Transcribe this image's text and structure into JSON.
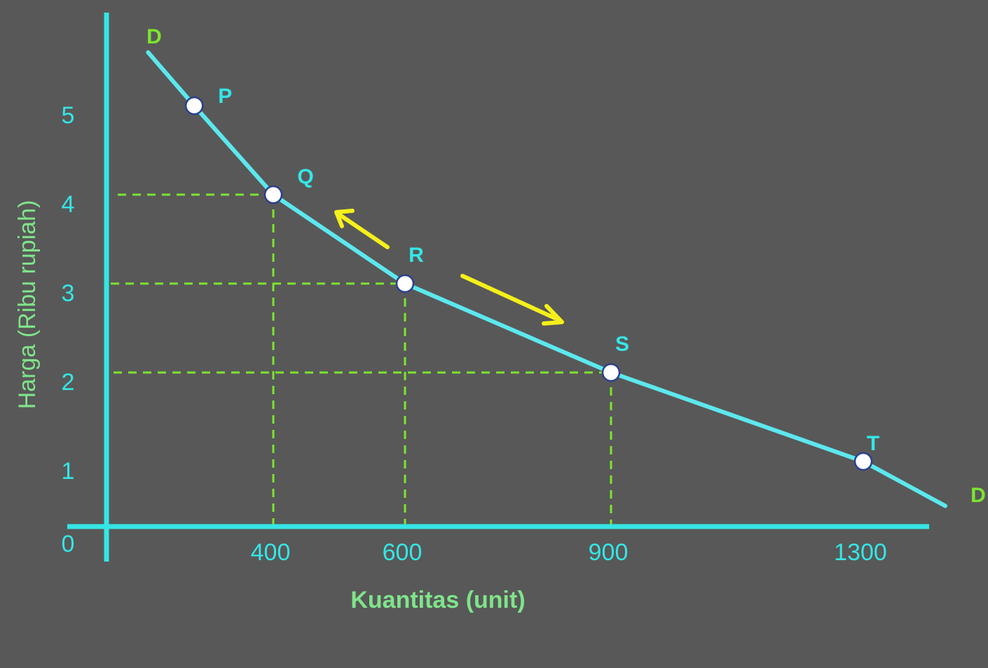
{
  "chart_data": {
    "type": "line",
    "xlabel": "Kuantitas (unit)",
    "ylabel": "Harga (Ribu rupiah)",
    "origin_label": "0",
    "x_ticks": [
      "400",
      "600",
      "900",
      "1300"
    ],
    "y_ticks": [
      "1",
      "2",
      "3",
      "4",
      "5"
    ],
    "curve_labels": [
      "D",
      "D"
    ],
    "series": [
      {
        "points": [
          {
            "label": "P",
            "x": 280,
            "y": 5
          },
          {
            "label": "Q",
            "x": 400,
            "y": 4
          },
          {
            "label": "R",
            "x": 600,
            "y": 3
          },
          {
            "label": "S",
            "x": 900,
            "y": 2
          },
          {
            "label": "T",
            "x": 1300,
            "y": 1
          }
        ]
      }
    ],
    "curve_ends": {
      "start": {
        "x": 210,
        "y": 5.6
      },
      "end": {
        "x": 1430,
        "y": 0.5
      }
    },
    "guides": [
      {
        "x": 400,
        "y": 4
      },
      {
        "x": 600,
        "y": 3
      },
      {
        "x": 900,
        "y": 2
      }
    ],
    "arrows": [
      "up-left",
      "down-right"
    ],
    "colors": {
      "background": "#585858",
      "curve": "#5ce8ee",
      "axis": "#35e6e6",
      "guide": "#7ce52e",
      "arrow": "#f5f01a",
      "point_fill": "#ffffff",
      "point_stroke": "#2a3f8f",
      "axis_title": "#7fe48a",
      "curve_label": "#7ce52e"
    }
  }
}
